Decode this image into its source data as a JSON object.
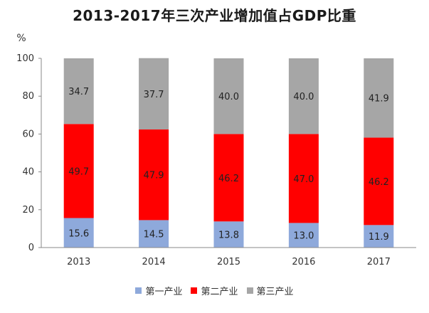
{
  "chart_data": {
    "type": "bar",
    "stacked": true,
    "title": "2013-2017年三次产业增加值占GDP比重",
    "ylabel": "%",
    "xlabel": "",
    "ylim": [
      0,
      100
    ],
    "yticks": [
      0,
      20,
      40,
      60,
      80,
      100
    ],
    "categories": [
      "2013",
      "2014",
      "2015",
      "2016",
      "2017"
    ],
    "series": [
      {
        "name": "第一产业",
        "color": "#8EA9DB",
        "values": [
          15.6,
          14.5,
          13.8,
          13.0,
          11.9
        ]
      },
      {
        "name": "第二产业",
        "color": "#FF0000",
        "values": [
          49.7,
          47.9,
          46.2,
          47.0,
          46.2
        ]
      },
      {
        "name": "第三产业",
        "color": "#A6A6A6",
        "values": [
          34.7,
          37.7,
          40.0,
          40.0,
          41.9
        ]
      }
    ],
    "legend_position": "bottom",
    "grid": false
  }
}
